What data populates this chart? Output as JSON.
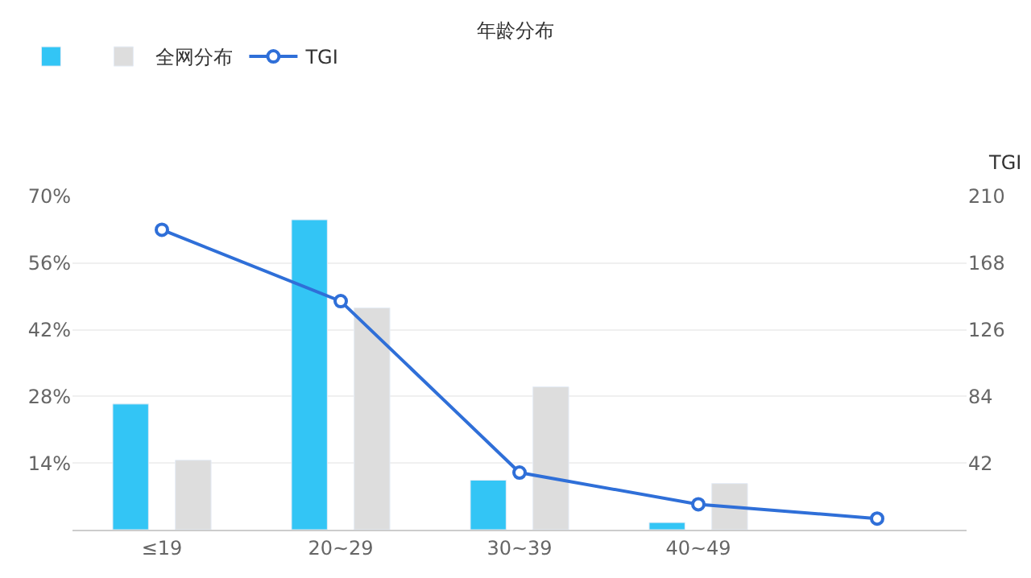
{
  "chart_data": {
    "type": "bar",
    "title": "年龄分布",
    "y2label": "TGI",
    "categories": [
      "≤19",
      "20~29",
      "30~39",
      "40~49",
      null
    ],
    "series": [
      {
        "color": "#33c5f5",
        "values": [
          26.4,
          65.1,
          10.4,
          1.5,
          null
        ]
      },
      {
        "name": "全网分布",
        "color": "#dddddd",
        "values": [
          14.6,
          46.6,
          30.0,
          9.7,
          null
        ]
      },
      {
        "name": "TGI",
        "type": "line",
        "axis": "y2",
        "color": "#2f6fd8",
        "marker": "circle",
        "values": [
          189,
          144,
          36,
          16,
          7
        ]
      }
    ],
    "ylim": [
      0,
      70
    ],
    "yticks": [
      {
        "value": 0,
        "label": null
      },
      {
        "value": 14,
        "label": "14%"
      },
      {
        "value": 28,
        "label": "28%"
      },
      {
        "value": 42,
        "label": "42%"
      },
      {
        "value": 56,
        "label": "56%"
      },
      {
        "value": 70,
        "label": "70%"
      }
    ],
    "y2lim": [
      0,
      210
    ],
    "y2ticks": [
      42,
      84,
      126,
      168,
      210
    ],
    "grid": "y",
    "legend": "top left"
  }
}
